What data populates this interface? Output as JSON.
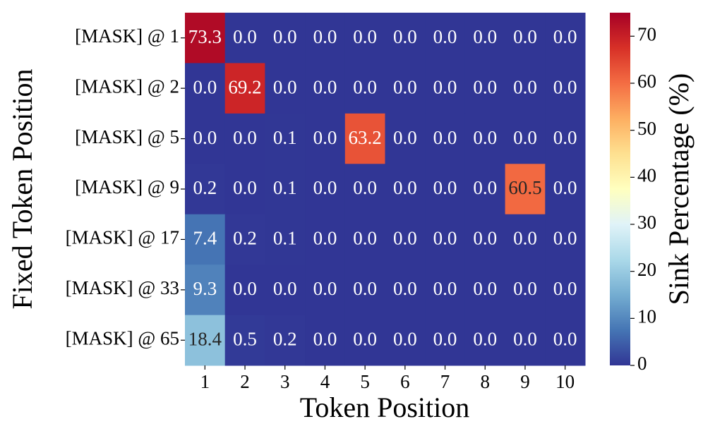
{
  "chart_data": {
    "type": "heatmap",
    "x_label": "Token Position",
    "y_label": "Fixed Token Position",
    "x_categories": [
      "1",
      "2",
      "3",
      "4",
      "5",
      "6",
      "7",
      "8",
      "9",
      "10"
    ],
    "y_categories": [
      "[MASK] @ 1",
      "[MASK] @ 2",
      "[MASK] @ 5",
      "[MASK] @ 9",
      "[MASK] @ 17",
      "[MASK] @ 33",
      "[MASK] @ 65"
    ],
    "values": [
      [
        73.3,
        0,
        0,
        0,
        0,
        0,
        0,
        0,
        0,
        0
      ],
      [
        0,
        69.2,
        0,
        0,
        0,
        0,
        0,
        0,
        0,
        0
      ],
      [
        0,
        0,
        0.1,
        0,
        63.2,
        0,
        0,
        0,
        0,
        0
      ],
      [
        0.2,
        0,
        0.1,
        0,
        0,
        0,
        0,
        0,
        60.5,
        0
      ],
      [
        7.4,
        0.2,
        0.1,
        0,
        0,
        0,
        0,
        0,
        0,
        0
      ],
      [
        9.3,
        0,
        0,
        0,
        0,
        0,
        0,
        0,
        0,
        0
      ],
      [
        18.4,
        0.5,
        0.2,
        0,
        0,
        0,
        0,
        0,
        0,
        0
      ]
    ],
    "value_labels": [
      [
        "73.3",
        "0.0",
        "0.0",
        "0.0",
        "0.0",
        "0.0",
        "0.0",
        "0.0",
        "0.0",
        "0.0"
      ],
      [
        "0.0",
        "69.2",
        "0.0",
        "0.0",
        "0.0",
        "0.0",
        "0.0",
        "0.0",
        "0.0",
        "0.0"
      ],
      [
        "0.0",
        "0.0",
        "0.1",
        "0.0",
        "63.2",
        "0.0",
        "0.0",
        "0.0",
        "0.0",
        "0.0"
      ],
      [
        "0.2",
        "0.0",
        "0.1",
        "0.0",
        "0.0",
        "0.0",
        "0.0",
        "0.0",
        "60.5",
        "0.0"
      ],
      [
        "7.4",
        "0.2",
        "0.1",
        "0.0",
        "0.0",
        "0.0",
        "0.0",
        "0.0",
        "0.0",
        "0.0"
      ],
      [
        "9.3",
        "0.0",
        "0.0",
        "0.0",
        "0.0",
        "0.0",
        "0.0",
        "0.0",
        "0.0",
        "0.0"
      ],
      [
        "18.4",
        "0.5",
        "0.2",
        "0.0",
        "0.0",
        "0.0",
        "0.0",
        "0.0",
        "0.0",
        "0.0"
      ]
    ],
    "colormap": "RdYlBu_r",
    "colorbar_label": "Sink Percentage (%)",
    "zlim": [
      0,
      75
    ],
    "zticks": [
      0,
      10,
      20,
      30,
      40,
      50,
      60,
      70
    ]
  }
}
